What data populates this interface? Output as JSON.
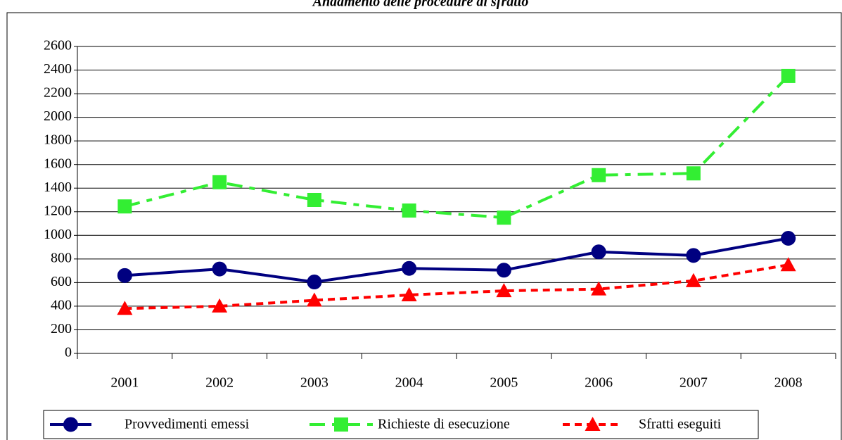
{
  "chart_data": {
    "type": "line",
    "title": "Andamento delle procedure di sfratto",
    "categories": [
      "2001",
      "2002",
      "2003",
      "2004",
      "2005",
      "2006",
      "2007",
      "2008"
    ],
    "series": [
      {
        "name": "Provvedimenti emessi",
        "color": "#000080",
        "line_style": "solid",
        "marker": "circle",
        "values": [
          660,
          715,
          605,
          720,
          705,
          860,
          830,
          975
        ]
      },
      {
        "name": "Richieste di esecuzione",
        "color": "#33ee33",
        "line_style": "dashdot",
        "marker": "square",
        "values": [
          1245,
          1450,
          1300,
          1210,
          1150,
          1510,
          1525,
          2350
        ]
      },
      {
        "name": "Sfratti eseguiti",
        "color": "#ff0000",
        "line_style": "dashed",
        "marker": "triangle",
        "values": [
          380,
          400,
          450,
          495,
          530,
          545,
          615,
          750
        ]
      }
    ],
    "ylim": [
      0,
      2600
    ],
    "yticks": [
      0,
      200,
      400,
      600,
      800,
      1000,
      1200,
      1400,
      1600,
      1800,
      2000,
      2200,
      2400,
      2600
    ],
    "grid": true,
    "legend": "bottom"
  }
}
